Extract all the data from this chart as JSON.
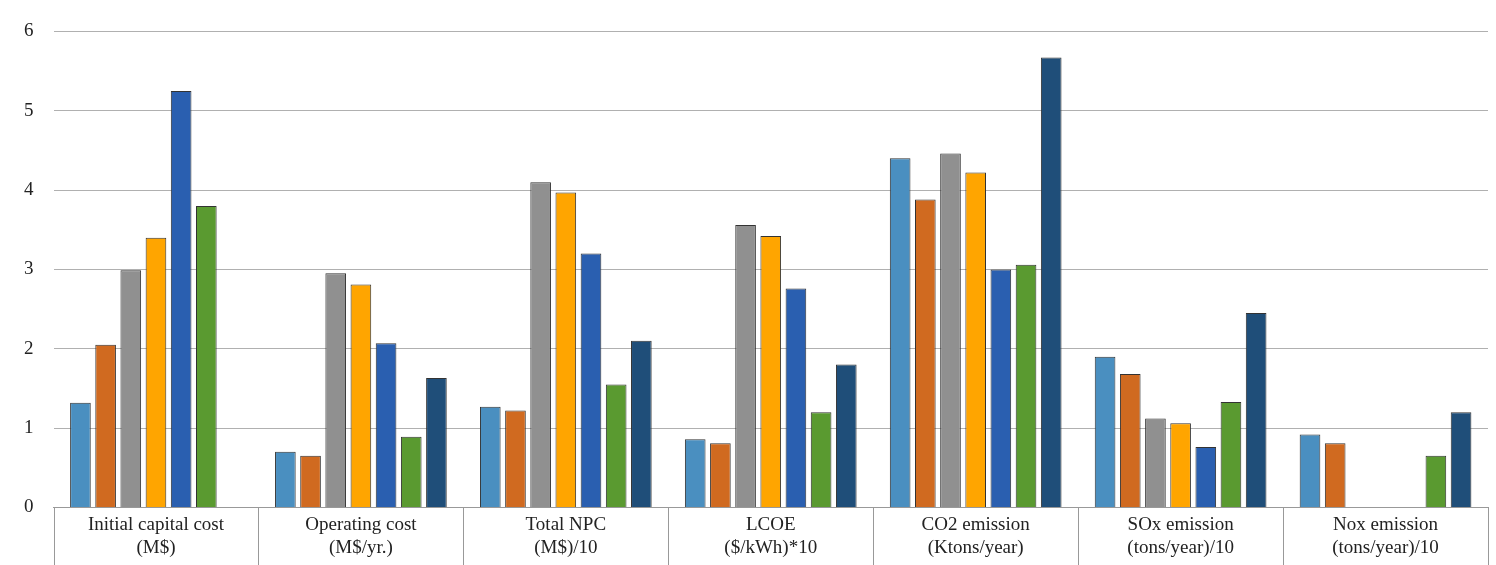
{
  "chart_data": {
    "type": "bar",
    "categories": [
      "Initial capital cost\n(M$)",
      "Operating cost\n(M$/yr.)",
      "Total NPC\n(M$)/10",
      "LCOE\n($/kWh)*10",
      "CO2 emission\n(Ktons/year)",
      "SOx emission\n(tons/year)/10",
      "Nox emission\n(tons/year)/10"
    ],
    "series": [
      {
        "color": "#4a8fc0",
        "values": [
          1.32,
          0.7,
          1.27,
          0.86,
          4.4,
          1.9,
          0.92
        ]
      },
      {
        "color": "#d06a20",
        "values": [
          2.05,
          0.65,
          1.22,
          0.81,
          3.88,
          1.68,
          0.81
        ]
      },
      {
        "color": "#909090",
        "values": [
          2.99,
          2.95,
          4.1,
          3.56,
          4.46,
          1.12,
          null
        ]
      },
      {
        "color": "#ffa500",
        "values": [
          3.4,
          2.81,
          3.97,
          3.42,
          4.22,
          1.06,
          null
        ]
      },
      {
        "color": "#2a5fb0",
        "values": [
          5.25,
          2.07,
          3.2,
          2.76,
          3.0,
          0.76,
          null
        ]
      },
      {
        "color": "#5a9a30",
        "values": [
          3.8,
          0.89,
          1.55,
          1.2,
          3.06,
          1.33,
          0.65
        ]
      },
      {
        "color": "#1f4e79",
        "values": [
          null,
          1.63,
          2.1,
          1.8,
          5.67,
          2.45,
          1.2
        ]
      }
    ],
    "ylim": [
      0,
      6
    ],
    "yticks": [
      0,
      1,
      2,
      3,
      4,
      5,
      6
    ],
    "grid": "y",
    "legend": false
  }
}
